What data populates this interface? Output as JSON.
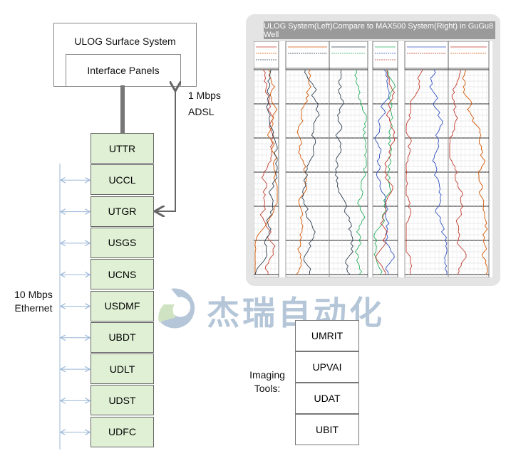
{
  "surface": {
    "title": "ULOG Surface System",
    "panel": "Interface Panels"
  },
  "link": {
    "speed": "1 Mbps",
    "type": "ADSL"
  },
  "ethernet": {
    "speed": "10 Mbps",
    "type": "Ethernet"
  },
  "modules": [
    "UTTR",
    "UCCL",
    "UTGR",
    "USGS",
    "UCNS",
    "USDMF",
    "UBDT",
    "UDLT",
    "UDST",
    "UDFC"
  ],
  "log_panel": {
    "title": "ULOG System(Left)Compare to MAX500 System(Right) in GuGu8 Well"
  },
  "watermark": "杰瑞自动化",
  "imaging": {
    "label_line1": "Imaging",
    "label_line2": "Tools:",
    "tools": [
      "UMRIT",
      "UPVAI",
      "UDAT",
      "UBIT"
    ]
  },
  "colors": {
    "module_fill": "#dff0d4",
    "arrow": "#9bb8d8",
    "watermark": "#b4c6d8"
  }
}
